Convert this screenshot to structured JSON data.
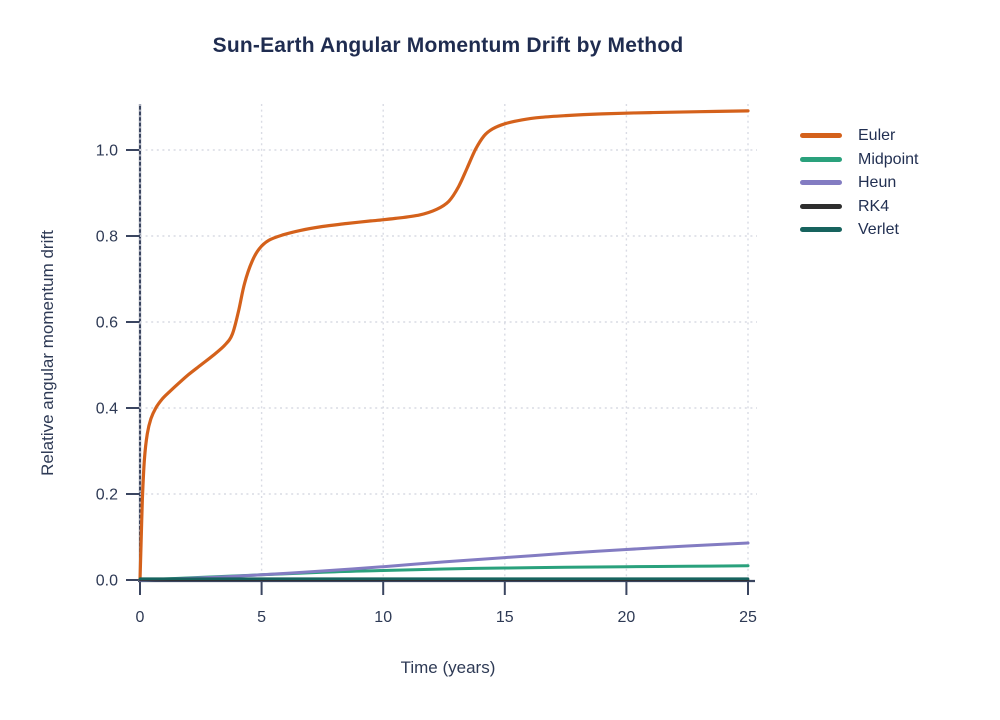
{
  "chart_data": {
    "type": "line",
    "title": "Sun-Earth Angular Momentum Drift by Method",
    "xlabel": "Time (years)",
    "ylabel": "Relative angular momentum drift",
    "xlim": [
      0,
      25
    ],
    "ylim": [
      0,
      1.12
    ],
    "xticks": [
      0,
      5,
      10,
      15,
      20,
      25
    ],
    "xtick_labels": [
      "0",
      "5",
      "10",
      "15",
      "20",
      "25"
    ],
    "yticks": [
      0.0,
      0.2,
      0.4,
      0.6,
      0.8,
      1.0
    ],
    "ytick_labels": [
      "0.0",
      "0.2",
      "0.4",
      "0.6",
      "0.8",
      "1.0"
    ],
    "grid": "dotted",
    "legend_position": "right",
    "colors": {
      "title_text": "#1f2c50",
      "axis_text": "#2e3a55",
      "axis_line": "#3a4560",
      "gridline": "#d9dbe4"
    },
    "series": [
      {
        "name": "Euler",
        "color": "#d4611b",
        "width": 3.2,
        "x": [
          0,
          0.04,
          0.1,
          0.18,
          0.3,
          0.45,
          0.65,
          0.9,
          1.2,
          1.6,
          2.0,
          2.5,
          3.0,
          3.5,
          3.8,
          4.05,
          4.3,
          4.6,
          4.9,
          5.3,
          5.9,
          6.6,
          7.5,
          8.5,
          9.5,
          10.5,
          11.5,
          12.2,
          12.7,
          13.1,
          13.45,
          13.8,
          14.15,
          14.5,
          15.0,
          15.7,
          16.5,
          17.5,
          19,
          21,
          23,
          25
        ],
        "y": [
          0,
          0.08,
          0.19,
          0.28,
          0.34,
          0.375,
          0.4,
          0.42,
          0.437,
          0.458,
          0.478,
          0.5,
          0.522,
          0.547,
          0.572,
          0.625,
          0.69,
          0.74,
          0.77,
          0.79,
          0.803,
          0.813,
          0.822,
          0.829,
          0.835,
          0.841,
          0.849,
          0.862,
          0.881,
          0.915,
          0.958,
          1.002,
          1.033,
          1.049,
          1.061,
          1.07,
          1.076,
          1.08,
          1.084,
          1.087,
          1.089,
          1.091
        ]
      },
      {
        "name": "Midpoint",
        "color": "#2aa17c",
        "width": 3,
        "x": [
          0,
          2.5,
          5,
          7.5,
          10,
          12.5,
          15,
          17.5,
          20,
          22.5,
          25
        ],
        "y": [
          0,
          0.006,
          0.012,
          0.018,
          0.022,
          0.0255,
          0.028,
          0.0295,
          0.031,
          0.032,
          0.033
        ]
      },
      {
        "name": "Heun",
        "color": "#837cc2",
        "width": 3,
        "x": [
          0,
          2.5,
          5,
          7.5,
          10,
          12.5,
          15,
          17.5,
          20,
          22.5,
          25
        ],
        "y": [
          0,
          0.005,
          0.012,
          0.021,
          0.031,
          0.042,
          0.052,
          0.062,
          0.071,
          0.079,
          0.086
        ]
      },
      {
        "name": "RK4",
        "color": "#2e2e2e",
        "width": 2.6,
        "x": [
          0,
          6,
          12,
          18,
          25
        ],
        "y": [
          0.001,
          0.001,
          0.001,
          0.001,
          0.001
        ]
      },
      {
        "name": "Verlet",
        "color": "#17635e",
        "width": 2.6,
        "x": [
          0,
          6,
          12,
          18,
          25
        ],
        "y": [
          0.003,
          0.003,
          0.003,
          0.003,
          0.003
        ]
      }
    ]
  }
}
